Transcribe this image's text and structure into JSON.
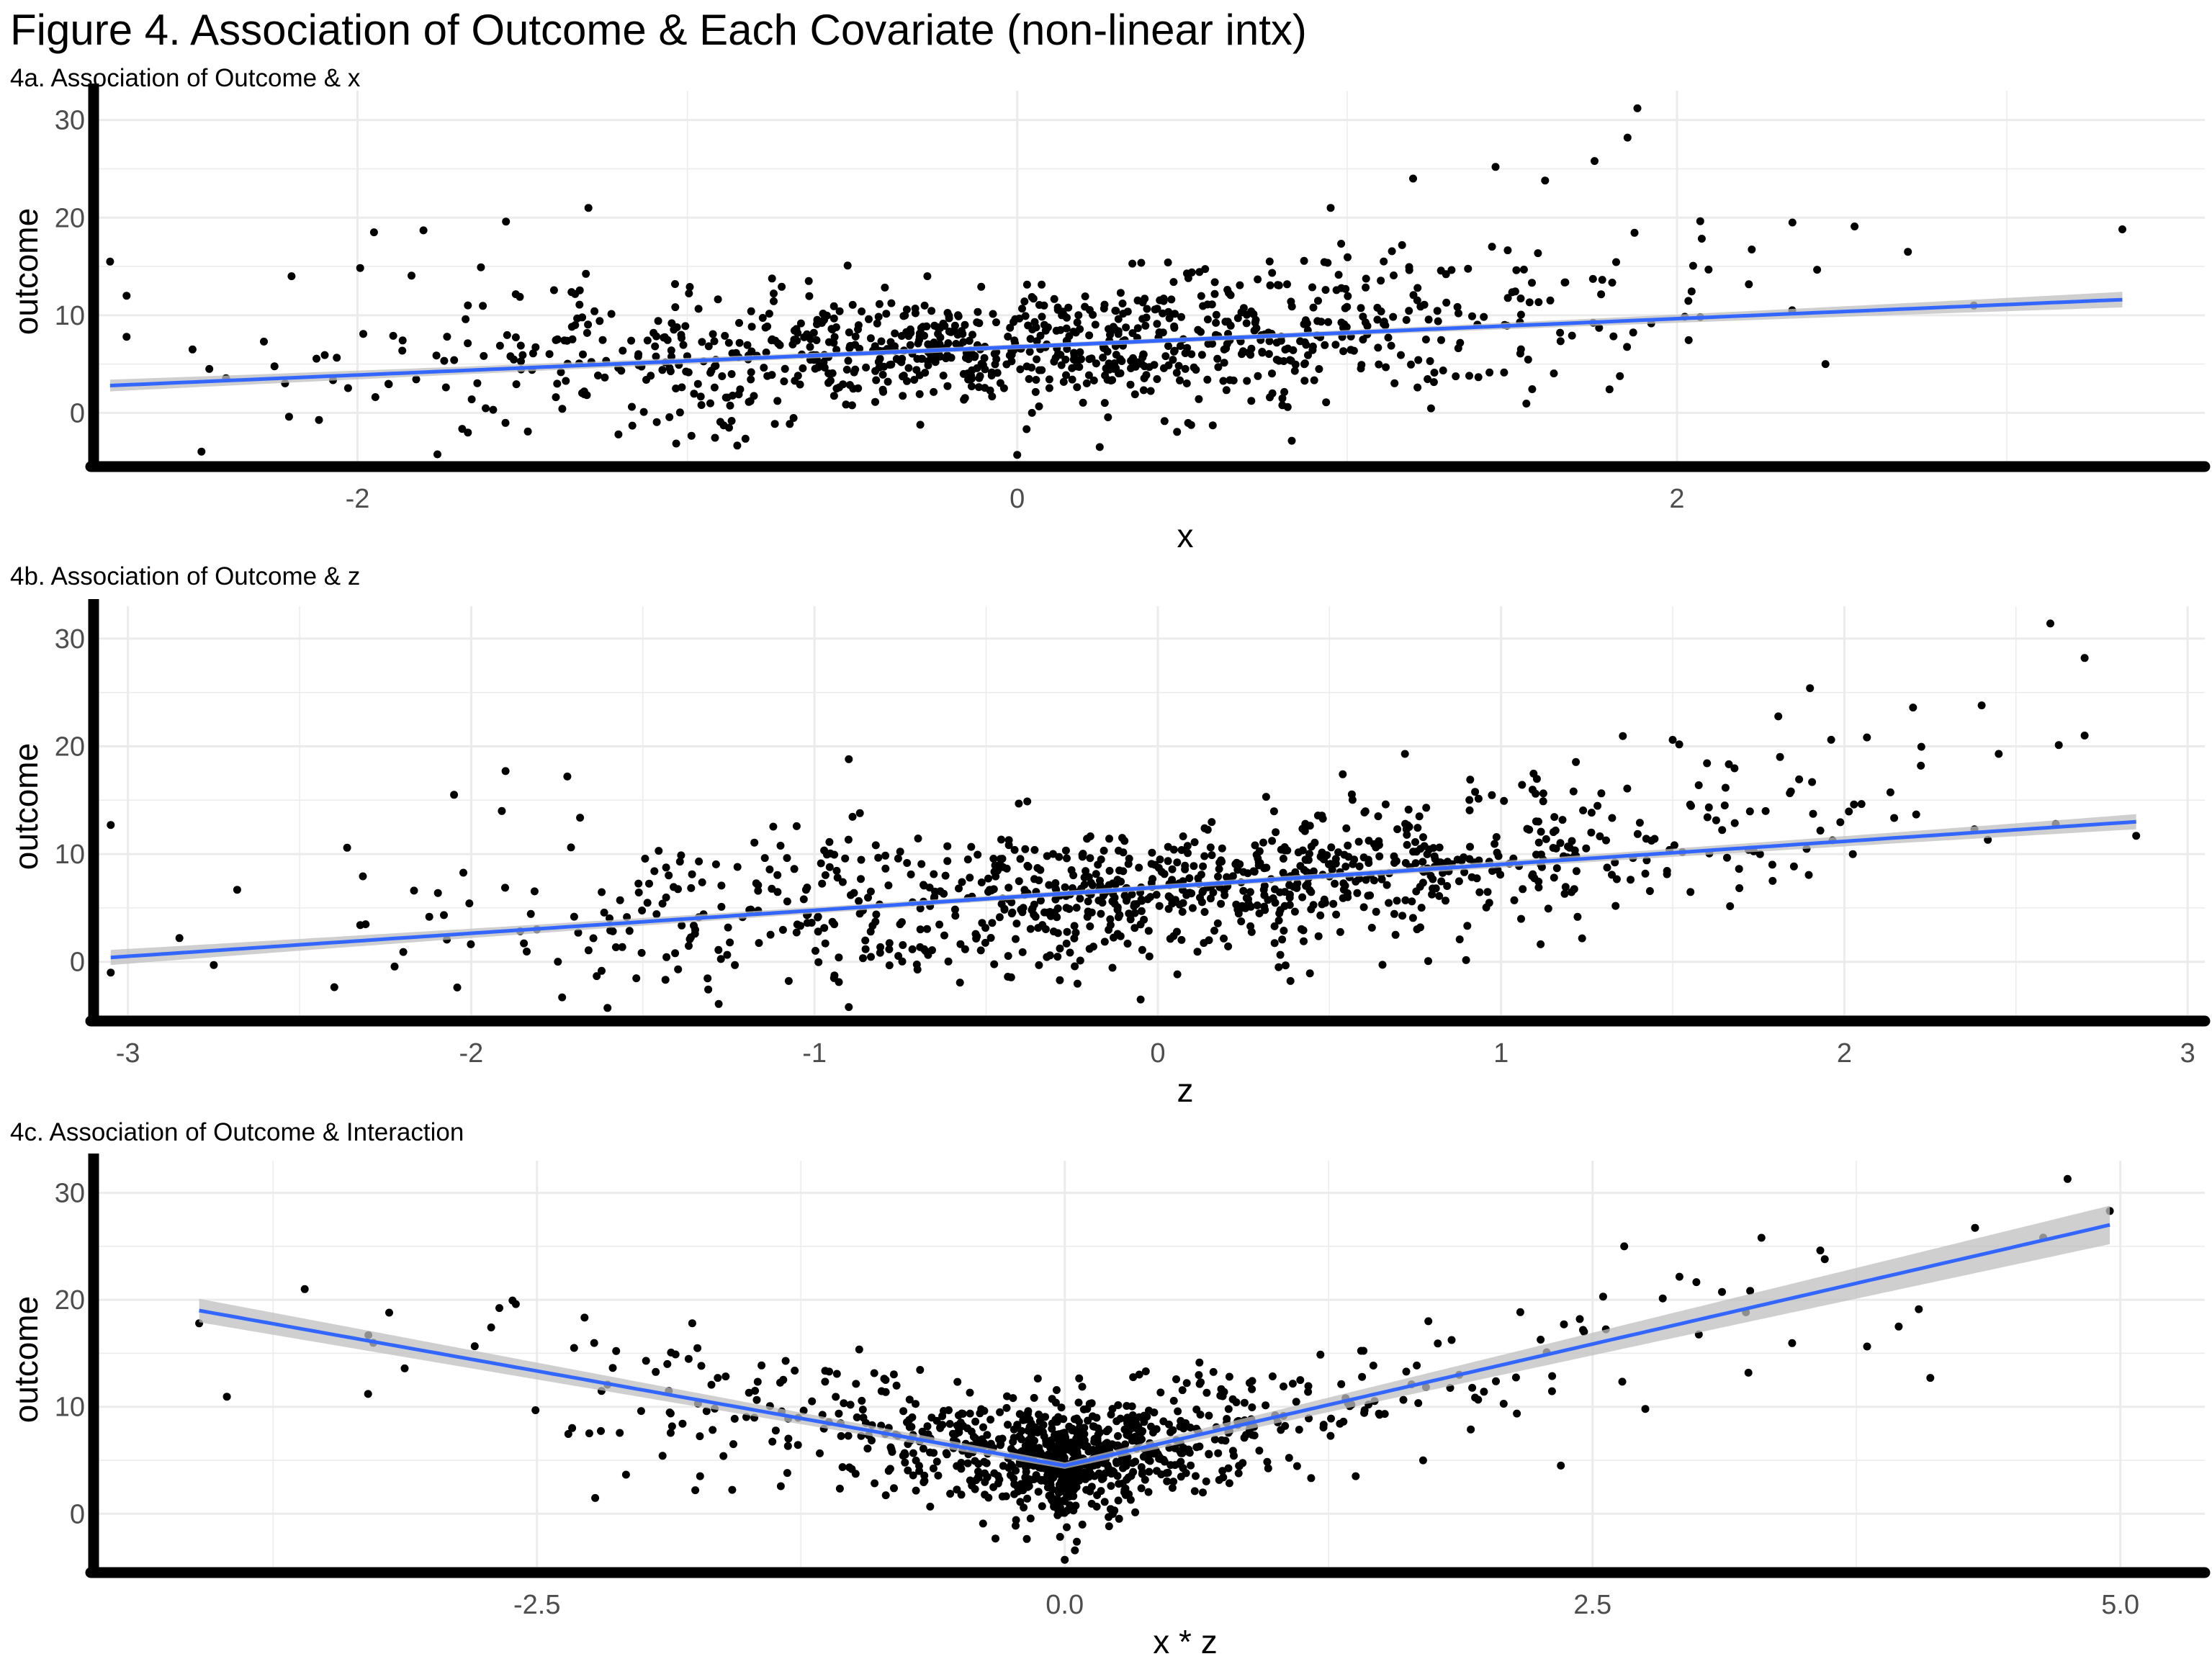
{
  "figure": {
    "title": "Figure 4. Association of Outcome & Each Covariate (non-linear intx)"
  },
  "colors": {
    "point": "#000000",
    "fit_line": "#3366FF",
    "ci_band": "#bfbfbf",
    "grid": "#ebebeb",
    "axis": "#000000"
  },
  "chart_data": [
    {
      "type": "scatter",
      "title": "4a. Association of Outcome & x",
      "xlabel": "x",
      "ylabel": "outcome",
      "xlim": [
        -2.8,
        3.6
      ],
      "ylim": [
        -5.5,
        33
      ],
      "xticks": [
        -2,
        0,
        2
      ],
      "xticklabels": [
        "-2",
        "0",
        "2"
      ],
      "yticks": [
        0,
        10,
        20,
        30
      ],
      "grid": true,
      "n_points": 1000,
      "fit": {
        "method": "lm",
        "x": [
          -2.75,
          3.35
        ],
        "y": [
          2.8,
          11.6
        ],
        "se_start": 0.6,
        "se_end": 0.8
      },
      "notable_points": [
        {
          "x": -2.75,
          "y": 15.5
        },
        {
          "x": -2.7,
          "y": 12
        },
        {
          "x": -2.7,
          "y": 7.8
        },
        {
          "x": -2.5,
          "y": 6.5
        },
        {
          "x": -2.2,
          "y": 14
        },
        {
          "x": -1.95,
          "y": 18.5
        },
        {
          "x": -1.8,
          "y": 18.7
        },
        {
          "x": -1.55,
          "y": 19.6
        },
        {
          "x": -1.3,
          "y": 21
        },
        {
          "x": 0.95,
          "y": 21
        },
        {
          "x": 1.2,
          "y": 24
        },
        {
          "x": 1.45,
          "y": 25.2
        },
        {
          "x": 1.6,
          "y": 23.8
        },
        {
          "x": 1.75,
          "y": 25.8
        },
        {
          "x": 1.85,
          "y": 28.2
        },
        {
          "x": 1.88,
          "y": 31.2
        },
        {
          "x": 2.35,
          "y": 19.5
        },
        {
          "x": 2.45,
          "y": 5
        },
        {
          "x": 2.7,
          "y": 16.5
        },
        {
          "x": 2.9,
          "y": 11
        },
        {
          "x": 3.35,
          "y": 18.8
        },
        {
          "x": 0.25,
          "y": -3.5
        },
        {
          "x": 0,
          "y": -4.3
        }
      ]
    },
    {
      "type": "scatter",
      "title": "4b. Association of Outcome & z",
      "xlabel": "z",
      "ylabel": "outcome",
      "xlim": [
        -3.1,
        3.05
      ],
      "ylim": [
        -5.5,
        33
      ],
      "xticks": [
        -3,
        -2,
        -1,
        0,
        1,
        2,
        3
      ],
      "xticklabels": [
        "-3",
        "-2",
        "-1",
        "0",
        "1",
        "2",
        "3"
      ],
      "yticks": [
        0,
        10,
        20,
        30
      ],
      "grid": true,
      "n_points": 1000,
      "fit": {
        "method": "lm",
        "x": [
          -3.05,
          2.85
        ],
        "y": [
          0.4,
          13
        ],
        "se_start": 0.7,
        "se_end": 0.7
      },
      "notable_points": [
        {
          "x": -3.05,
          "y": 12.7
        },
        {
          "x": -3.05,
          "y": -1
        },
        {
          "x": -2.85,
          "y": 2.2
        },
        {
          "x": -2.75,
          "y": -0.3
        },
        {
          "x": -2.05,
          "y": 15.5
        },
        {
          "x": -1.9,
          "y": 17.7
        },
        {
          "x": -1.72,
          "y": 17.2
        },
        {
          "x": -0.9,
          "y": 18.8
        },
        {
          "x": -0.9,
          "y": -4.2
        },
        {
          "x": 0.72,
          "y": 19.3
        },
        {
          "x": 1.5,
          "y": 20.6
        },
        {
          "x": 1.9,
          "y": 25.4
        },
        {
          "x": 2.2,
          "y": 23.6
        },
        {
          "x": 2.4,
          "y": 23.8
        },
        {
          "x": 2.6,
          "y": 31.4
        },
        {
          "x": 2.7,
          "y": 28.2
        },
        {
          "x": 2.7,
          "y": 21
        },
        {
          "x": 2.85,
          "y": 11.7
        },
        {
          "x": -0.05,
          "y": -3.5
        }
      ]
    },
    {
      "type": "scatter",
      "title": "4c. Association of Outcome & Interaction",
      "xlabel": "x * z",
      "ylabel": "outcome",
      "xlim": [
        -4.6,
        5.4
      ],
      "ylim": [
        -5.5,
        33
      ],
      "xticks": [
        -2.5,
        0,
        2.5,
        5
      ],
      "xticklabels": [
        "-2.5",
        "0.0",
        "2.5",
        "5.0"
      ],
      "yticks": [
        0,
        10,
        20,
        30
      ],
      "grid": true,
      "n_points": 1000,
      "fit": {
        "method": "piecewise",
        "x": [
          -4.1,
          0,
          4.95
        ],
        "y": [
          19,
          4.5,
          27
        ],
        "se": [
          1.1,
          0.3,
          1.8
        ]
      },
      "notable_points": [
        {
          "x": -4.1,
          "y": 17.8
        },
        {
          "x": -3.6,
          "y": 21
        },
        {
          "x": -3.2,
          "y": 18.8
        },
        {
          "x": -2.6,
          "y": 19.6
        },
        {
          "x": -3.3,
          "y": 11.2
        },
        {
          "x": -1.75,
          "y": 2.2
        },
        {
          "x": 0,
          "y": -4.3
        },
        {
          "x": 2.55,
          "y": 20.3
        },
        {
          "x": 2.65,
          "y": 25
        },
        {
          "x": 2.75,
          "y": 9.8
        },
        {
          "x": 3.3,
          "y": 25.8
        },
        {
          "x": 3.6,
          "y": 23.8
        },
        {
          "x": 3.95,
          "y": 17.5
        },
        {
          "x": 4.1,
          "y": 12.7
        },
        {
          "x": 4.75,
          "y": 31.3
        },
        {
          "x": 4.95,
          "y": 28.3
        },
        {
          "x": 2.35,
          "y": 4.5
        }
      ]
    }
  ]
}
